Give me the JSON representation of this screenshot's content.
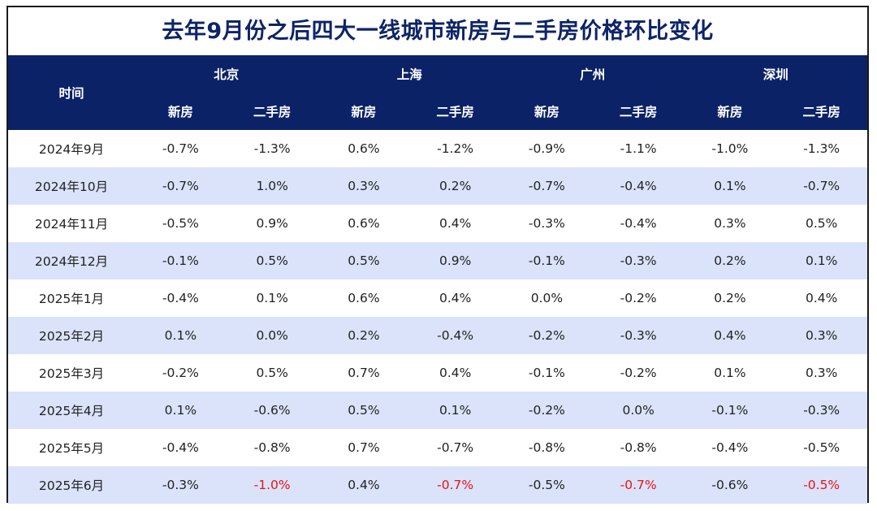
{
  "title": "去年9月份之后四大一线城市新房与二手房价格环比变化",
  "header": {
    "time": "时间",
    "cities": [
      "北京",
      "上海",
      "广州",
      "深圳"
    ],
    "sub": [
      "新房",
      "二手房",
      "新房",
      "二手房",
      "新房",
      "二手房",
      "新房",
      "二手房"
    ]
  },
  "highlight_color": "#ee1111",
  "rows": [
    {
      "time": "2024年9月",
      "values": [
        "-0.7%",
        "-1.3%",
        "0.6%",
        "-1.2%",
        "-0.9%",
        "-1.1%",
        "-1.0%",
        "-1.3%"
      ]
    },
    {
      "time": "2024年10月",
      "values": [
        "-0.7%",
        "1.0%",
        "0.3%",
        "0.2%",
        "-0.7%",
        "-0.4%",
        "0.1%",
        "-0.7%"
      ]
    },
    {
      "time": "2024年11月",
      "values": [
        "-0.5%",
        "0.9%",
        "0.6%",
        "0.4%",
        "-0.3%",
        "-0.4%",
        "0.3%",
        "0.5%"
      ]
    },
    {
      "time": "2024年12月",
      "values": [
        "-0.1%",
        "0.5%",
        "0.5%",
        "0.9%",
        "-0.1%",
        "-0.3%",
        "0.2%",
        "0.1%"
      ]
    },
    {
      "time": "2025年1月",
      "values": [
        "-0.4%",
        "0.1%",
        "0.6%",
        "0.4%",
        "0.0%",
        "-0.2%",
        "0.2%",
        "0.4%"
      ]
    },
    {
      "time": "2025年2月",
      "values": [
        "0.1%",
        "0.0%",
        "0.2%",
        "-0.4%",
        "-0.2%",
        "-0.3%",
        "0.4%",
        "0.3%"
      ]
    },
    {
      "time": "2025年3月",
      "values": [
        "-0.2%",
        "0.5%",
        "0.7%",
        "0.4%",
        "-0.1%",
        "-0.2%",
        "0.1%",
        "0.3%"
      ]
    },
    {
      "time": "2025年4月",
      "values": [
        "0.1%",
        "-0.6%",
        "0.5%",
        "0.1%",
        "-0.2%",
        "0.0%",
        "-0.1%",
        "-0.3%"
      ]
    },
    {
      "time": "2025年5月",
      "values": [
        "-0.4%",
        "-0.8%",
        "0.7%",
        "-0.7%",
        "-0.8%",
        "-0.8%",
        "-0.4%",
        "-0.5%"
      ]
    },
    {
      "time": "2025年6月",
      "values": [
        "-0.3%",
        "-1.0%",
        "0.4%",
        "-0.7%",
        "-0.5%",
        "-0.7%",
        "-0.6%",
        "-0.5%"
      ],
      "red_cols": [
        1,
        3,
        5,
        7
      ]
    }
  ]
}
